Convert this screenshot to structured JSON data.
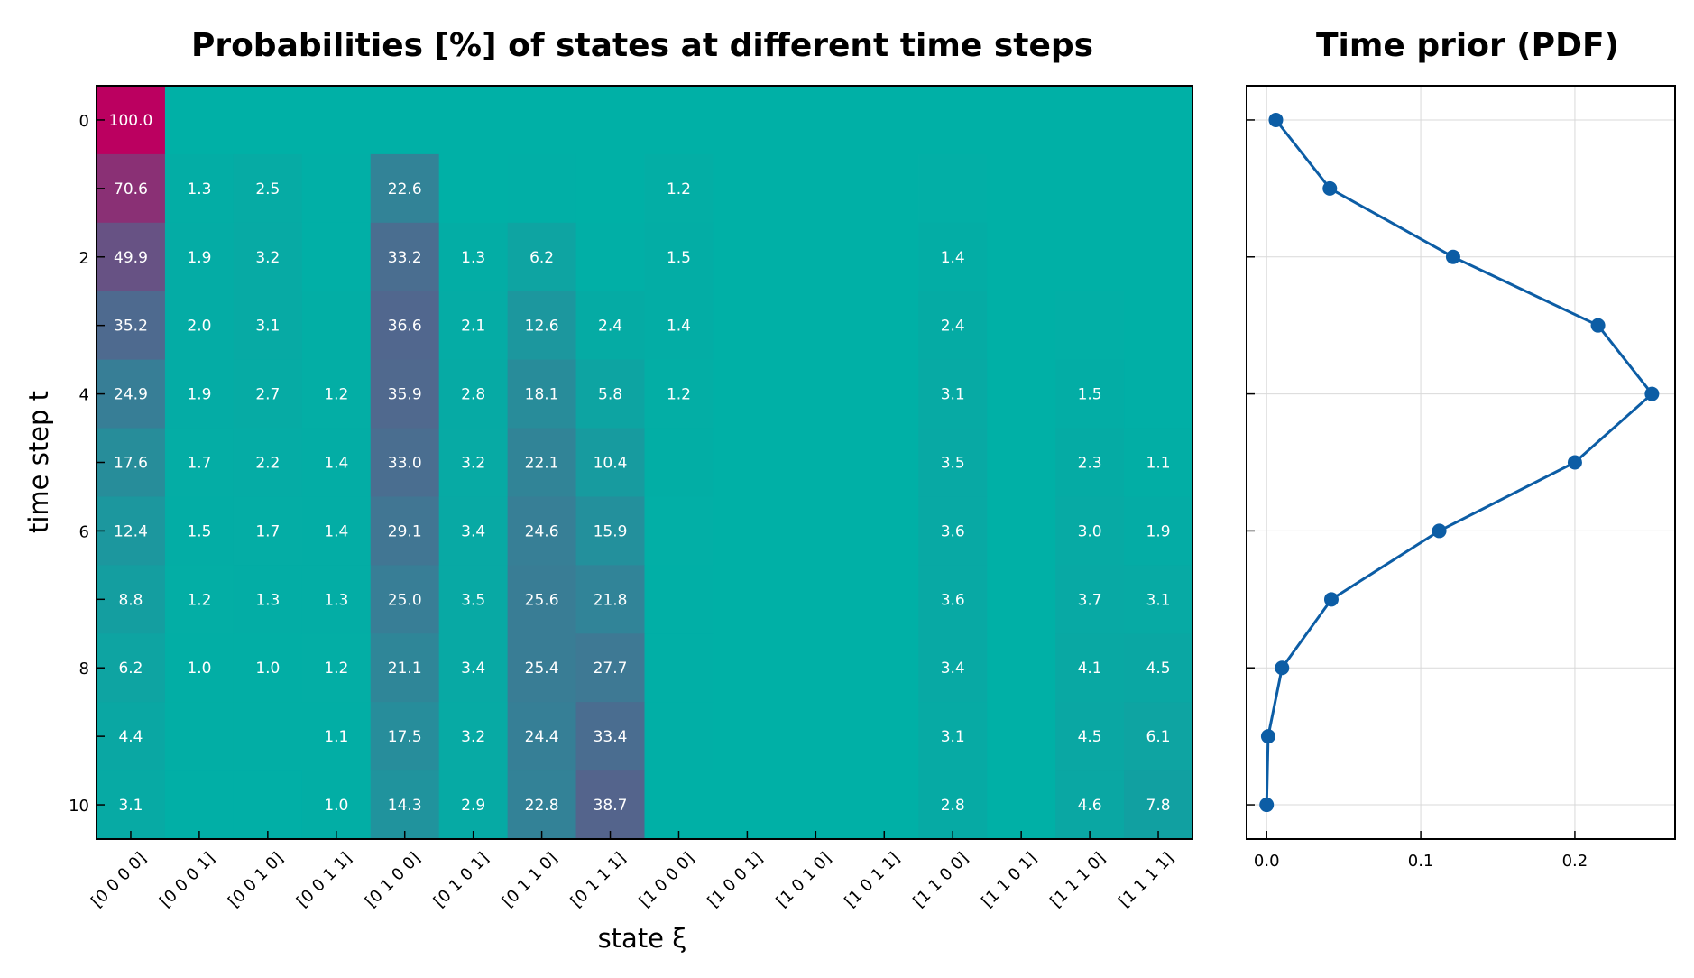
{
  "colors": {
    "low": "#00b0a6",
    "mid": "#4e6a8f",
    "high": "#bb0060",
    "line": "#0c5da5"
  },
  "chart_data": [
    {
      "type": "heatmap",
      "title": "Probabilities [%] of states at different time steps",
      "xlabel": "state ξ",
      "ylabel": "time step t",
      "x_categories": [
        "[0 0 0 0]",
        "[0 0 0 1]",
        "[0 0 1 0]",
        "[0 0 1 1]",
        "[0 1 0 0]",
        "[0 1 0 1]",
        "[0 1 1 0]",
        "[0 1 1 1]",
        "[1 0 0 0]",
        "[1 0 0 1]",
        "[1 0 1 0]",
        "[1 0 1 1]",
        "[1 1 0 0]",
        "[1 1 0 1]",
        "[1 1 1 0]",
        "[1 1 1 1]"
      ],
      "y_values": [
        0,
        1,
        2,
        3,
        4,
        5,
        6,
        7,
        8,
        9,
        10
      ],
      "y_ticks": [
        "0",
        "2",
        "4",
        "6",
        "8",
        "10"
      ],
      "label_threshold": 1.0,
      "values": [
        [
          100.0,
          0,
          0,
          0,
          0,
          0,
          0,
          0,
          0,
          0,
          0,
          0,
          0,
          0,
          0,
          0
        ],
        [
          70.6,
          1.3,
          2.5,
          0.3,
          22.6,
          0.2,
          0.3,
          0,
          1.2,
          0,
          0,
          0,
          0.7,
          0,
          0,
          0
        ],
        [
          49.9,
          1.9,
          3.2,
          0.6,
          33.2,
          1.3,
          6.2,
          0.3,
          1.5,
          0,
          0,
          0,
          1.4,
          0,
          0.2,
          0
        ],
        [
          35.2,
          2.0,
          3.1,
          0.9,
          36.6,
          2.1,
          12.6,
          2.4,
          1.4,
          0,
          0,
          0,
          2.4,
          0,
          0.7,
          0.2
        ],
        [
          24.9,
          1.9,
          2.7,
          1.2,
          35.9,
          2.8,
          18.1,
          5.8,
          1.2,
          0,
          0,
          0,
          3.1,
          0,
          1.5,
          0.5
        ],
        [
          17.6,
          1.7,
          2.2,
          1.4,
          33.0,
          3.2,
          22.1,
          10.4,
          0.9,
          0,
          0,
          0,
          3.5,
          0,
          2.3,
          1.1
        ],
        [
          12.4,
          1.5,
          1.7,
          1.4,
          29.1,
          3.4,
          24.6,
          15.9,
          0.7,
          0,
          0,
          0,
          3.6,
          0,
          3.0,
          1.9
        ],
        [
          8.8,
          1.2,
          1.3,
          1.3,
          25.0,
          3.5,
          25.6,
          21.8,
          0.5,
          0,
          0,
          0,
          3.6,
          0,
          3.7,
          3.1
        ],
        [
          6.2,
          1.0,
          1.0,
          1.2,
          21.1,
          3.4,
          25.4,
          27.7,
          0.4,
          0,
          0,
          0,
          3.4,
          0,
          4.1,
          4.5
        ],
        [
          4.4,
          0.8,
          0.8,
          1.1,
          17.5,
          3.2,
          24.4,
          33.4,
          0.3,
          0,
          0,
          0,
          3.1,
          0,
          4.5,
          6.1
        ],
        [
          3.1,
          0.6,
          0.6,
          1.0,
          14.3,
          2.9,
          22.8,
          38.7,
          0.2,
          0,
          0,
          0,
          2.8,
          0,
          4.6,
          7.8
        ]
      ]
    },
    {
      "type": "line",
      "title": "Time prior (PDF)",
      "x_ticks": [
        "0.0",
        "0.1",
        "0.2"
      ],
      "xlim": [
        -0.013,
        0.265
      ],
      "ylim": [
        -0.5,
        10.5
      ],
      "y_inverted": true,
      "grid": true,
      "x": [
        0.006,
        0.041,
        0.121,
        0.215,
        0.25,
        0.2,
        0.112,
        0.042,
        0.01,
        0.001,
        0.0
      ],
      "y": [
        0,
        1,
        2,
        3,
        4,
        5,
        6,
        7,
        8,
        9,
        10
      ]
    }
  ]
}
